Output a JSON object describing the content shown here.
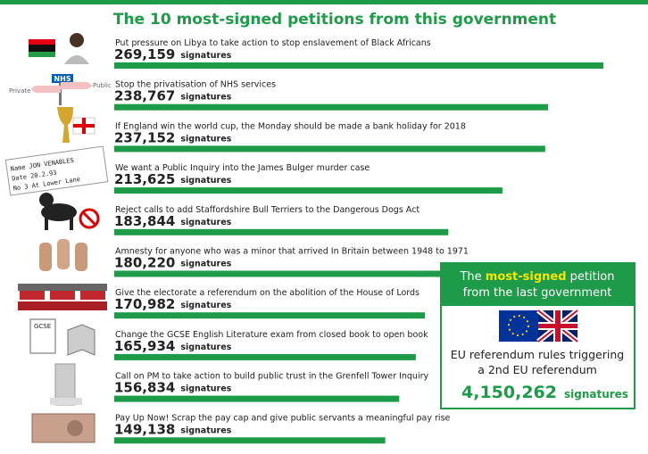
{
  "chart_data": {
    "type": "bar",
    "title": "The 10 most-signed petitions from this government",
    "categories": [
      "Put pressure on Libya to take action to stop enslavement of Black Africans",
      "Stop the privatisation of NHS services",
      "If England win the world cup, the Monday should be made a bank holiday for 2018",
      "We want a Public Inquiry into the James Bulger murder case",
      "Reject calls to add Staffordshire Bull Terriers to the Dangerous Dogs Act",
      "Amnesty for anyone who was a minor that arrived In Britain between 1948 to 1971",
      "Give the electorate a referendum on the abolition of the House of Lords",
      "Change the GCSE English Literature exam from closed book to open book",
      "Call on PM to take action to build public trust in the Grenfell Tower Inquiry",
      "Pay Up Now! Scrap the pay cap and give public servants a meaningful pay rise"
    ],
    "values": [
      269159,
      238767,
      237152,
      213625,
      183844,
      180220,
      170982,
      165934,
      156834,
      149138
    ],
    "value_labels": [
      "269,159",
      "238,767",
      "237,152",
      "213,625",
      "183,844",
      "180,220",
      "170,982",
      "165,934",
      "156,834",
      "149,138"
    ],
    "unit": "signatures",
    "color": "#1e9b48",
    "highlight": {
      "title_parts": [
        "The ",
        "most-signed",
        " petition",
        "from the last government"
      ],
      "text_lines": [
        "EU referendum rules triggering",
        "a 2nd EU referendum"
      ],
      "value": 4150262,
      "value_label": "4,150,262",
      "unit": "signatures"
    },
    "icon_texts": [
      "NHS",
      "Private",
      "Public",
      "Name JON VENABLES",
      "Date 20.2.93",
      "No 3 At Lower Lane",
      "GCSE"
    ]
  }
}
